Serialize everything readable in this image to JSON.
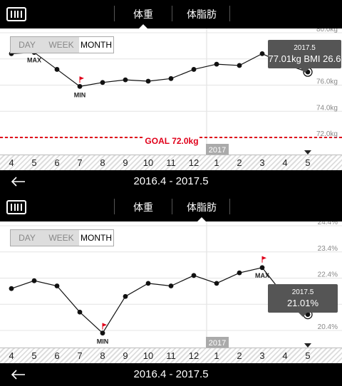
{
  "tabs": [
    {
      "label": "体重"
    },
    {
      "label": "体脂肪"
    }
  ],
  "segments": {
    "day": "DAY",
    "week": "WEEK",
    "month": "MONTH"
  },
  "x_labels": [
    "4",
    "5",
    "6",
    "7",
    "8",
    "9",
    "10",
    "11",
    "12",
    "1",
    "2",
    "3",
    "4",
    "5"
  ],
  "year_label": "2017",
  "date_range": "2016.4 - 2017.5",
  "colors": {
    "goal": "#e0001a",
    "flag": "#e0001a",
    "tooltip": "#555555",
    "chart_bg": "#ffffff"
  },
  "icons": {
    "logo": "scale-logo-icon",
    "back": "back-arrow-icon",
    "flag": "flag-icon"
  },
  "weight": {
    "y_ticks": [
      "80.0kg",
      "78.0kg",
      "76.0kg",
      "74.0kg",
      "72.0kg"
    ],
    "goal_label": "GOAL 72.0kg",
    "max_label": "MAX",
    "min_label": "MIN",
    "tooltip_date": "2017.5",
    "tooltip_value": "77.01kg  BMI 26.6"
  },
  "fat": {
    "y_ticks": [
      "24.4%",
      "23.4%",
      "22.4%",
      "21.4%",
      "20.4%"
    ],
    "max_label": "MAX",
    "min_label": "MIN",
    "tooltip_date": "2017.5",
    "tooltip_value": "21.01%"
  },
  "chart_data": [
    {
      "type": "line",
      "categories": [
        "4",
        "5",
        "6",
        "7",
        "8",
        "9",
        "10",
        "11",
        "12",
        "1",
        "2",
        "3",
        "4",
        "5"
      ],
      "values": [
        78.4,
        78.5,
        77.2,
        75.9,
        76.2,
        76.4,
        76.3,
        76.5,
        77.2,
        77.6,
        77.5,
        78.4,
        77.6,
        77.0
      ],
      "ylim": [
        72.0,
        80.0
      ],
      "y_ticks": [
        "80.0kg",
        "78.0kg",
        "76.0kg",
        "74.0kg",
        "72.0kg"
      ],
      "goal": 72.0,
      "max_index": 1,
      "min_index": 3,
      "selected_index": 13,
      "grid": true
    },
    {
      "type": "line",
      "categories": [
        "4",
        "5",
        "6",
        "7",
        "8",
        "9",
        "10",
        "11",
        "12",
        "1",
        "2",
        "3",
        "4",
        "5"
      ],
      "values": [
        22.0,
        22.3,
        22.1,
        21.1,
        20.3,
        21.7,
        22.2,
        22.1,
        22.5,
        22.2,
        22.6,
        22.8,
        21.7,
        21.01
      ],
      "ylim": [
        20.4,
        24.4
      ],
      "y_ticks": [
        "24.4%",
        "23.4%",
        "22.4%",
        "21.4%",
        "20.4%"
      ],
      "max_index": 11,
      "min_index": 4,
      "selected_index": 13,
      "grid": true
    }
  ]
}
